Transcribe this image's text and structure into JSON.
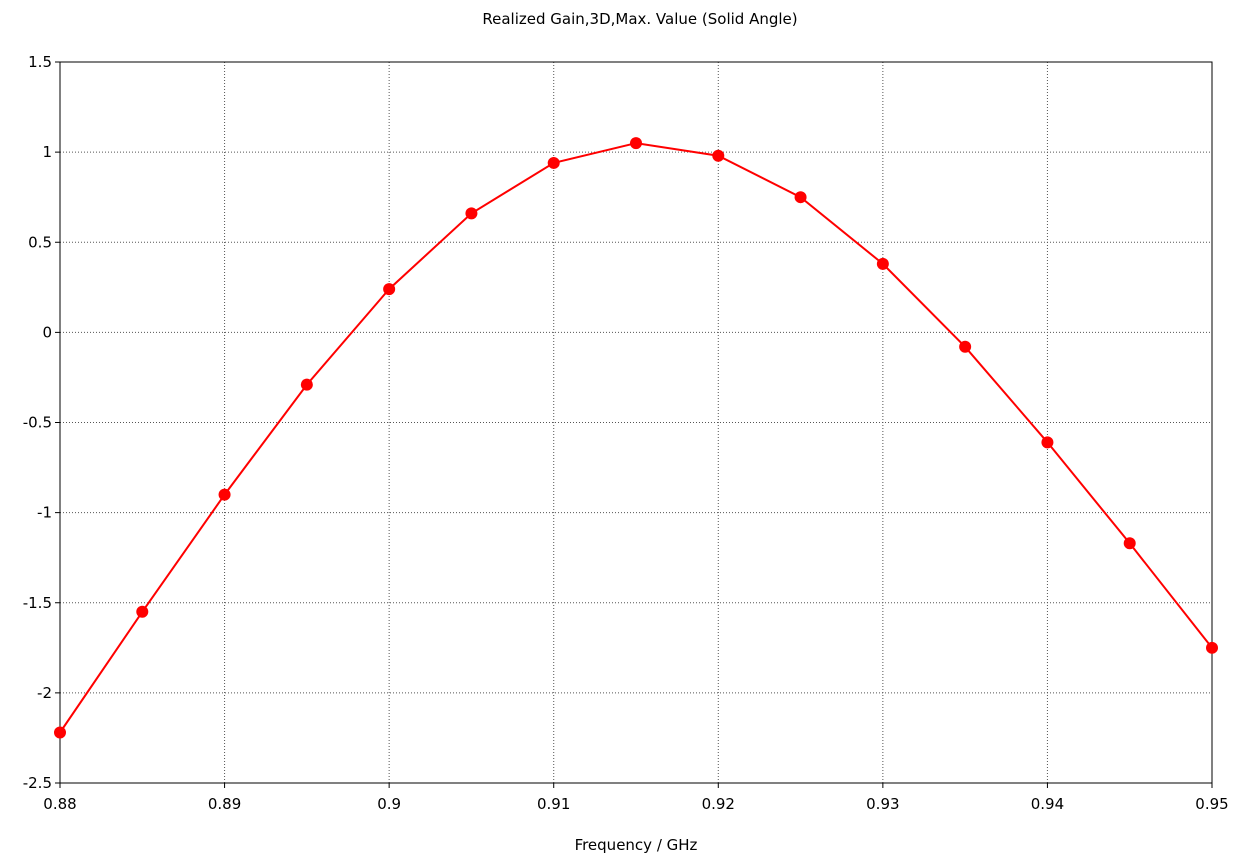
{
  "chart_data": {
    "type": "line",
    "title": "Realized Gain,3D,Max. Value (Solid Angle)",
    "xlabel": "Frequency / GHz",
    "ylabel": "",
    "xlim": [
      0.88,
      0.95
    ],
    "ylim": [
      -2.5,
      1.5
    ],
    "x_ticks": [
      "0.88",
      "0.89",
      "0.9",
      "0.91",
      "0.92",
      "0.93",
      "0.94",
      "0.95"
    ],
    "y_ticks": [
      "1.5",
      "1",
      "0.5",
      "0",
      "-0.5",
      "-1",
      "-1.5",
      "-2",
      "-2.5"
    ],
    "grid": true,
    "legend": "none",
    "series": [
      {
        "color": "#ff0000",
        "marker": "circle",
        "x": [
          0.88,
          0.885,
          0.89,
          0.895,
          0.9,
          0.905,
          0.91,
          0.915,
          0.92,
          0.925,
          0.93,
          0.935,
          0.94,
          0.945,
          0.95
        ],
        "y": [
          -2.22,
          -1.55,
          -0.9,
          -0.29,
          0.24,
          0.66,
          0.94,
          1.05,
          0.98,
          0.75,
          0.38,
          -0.08,
          -0.61,
          -1.17,
          -1.75
        ]
      }
    ]
  }
}
